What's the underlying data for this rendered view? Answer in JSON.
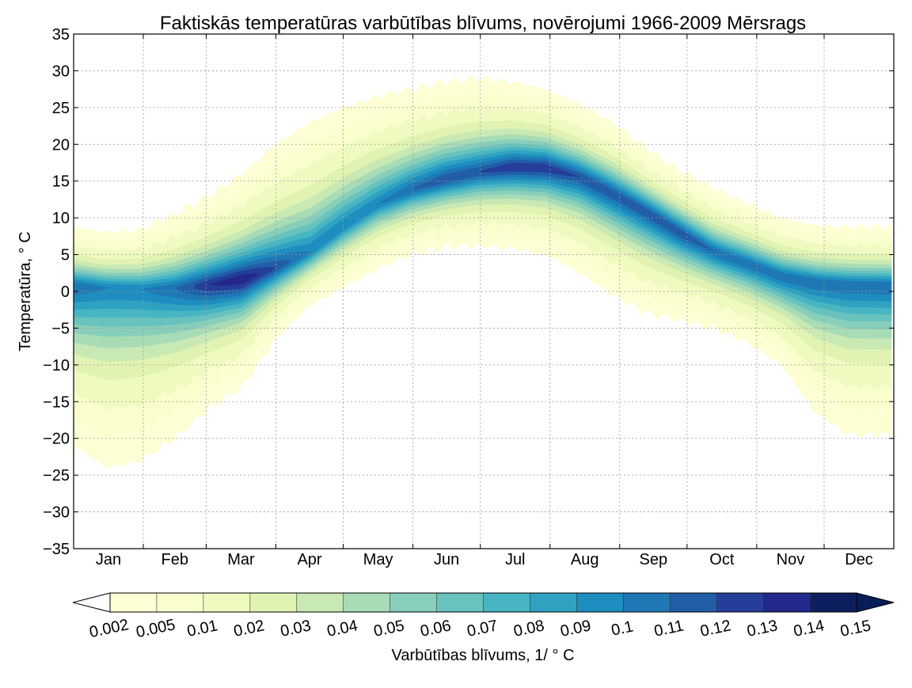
{
  "chart_data": {
    "type": "heatmap",
    "subtype": "filled-contour",
    "title": "Faktiskās temperatūras varbūtības blīvums, novērojumi 1966-2009 Mērsrags",
    "xlabel": "",
    "ylabel": "Temperatūra, ° C",
    "colorbar_label": "Varbūtības blīvums, 1/ ° C",
    "xlim": [
      0,
      365
    ],
    "ylim": [
      -35,
      35
    ],
    "yticks": [
      35,
      30,
      25,
      20,
      15,
      10,
      5,
      0,
      -5,
      -10,
      -15,
      -20,
      -25,
      -30,
      -35
    ],
    "ytick_labels": [
      "35",
      "30",
      "25",
      "20",
      "15",
      "10",
      "5",
      "0",
      "−5",
      "−10",
      "−15",
      "−20",
      "−25",
      "−30",
      "−35"
    ],
    "months": [
      "Jan",
      "Feb",
      "Mar",
      "Apr",
      "May",
      "Jun",
      "Jul",
      "Aug",
      "Sep",
      "Oct",
      "Nov",
      "Dec"
    ],
    "month_boundaries": [
      0,
      31,
      59,
      90,
      120,
      151,
      181,
      212,
      243,
      273,
      304,
      334,
      365
    ],
    "grid": true,
    "colormap": "YlGnBu",
    "levels": [
      0.002,
      0.005,
      0.01,
      0.02,
      0.03,
      0.04,
      0.05,
      0.06,
      0.07,
      0.08,
      0.09,
      0.1,
      0.11,
      0.12,
      0.13,
      0.14,
      0.15
    ],
    "level_labels": [
      "0.002",
      "0.005",
      "0.01",
      "0.02",
      "0.03",
      "0.04",
      "0.05",
      "0.06",
      "0.07",
      "0.08",
      "0.09",
      "0.1",
      "0.11",
      "0.12",
      "0.13",
      "0.14",
      "0.15"
    ],
    "level_colors": [
      "#fdfed4",
      "#fafdcc",
      "#effac0",
      "#e1f3b2",
      "#c9e9b4",
      "#a8dcb6",
      "#88cfbb",
      "#68c2be",
      "#48b5c3",
      "#2fa2c2",
      "#1d8ebf",
      "#1f78b4",
      "#225ea8",
      "#243e99",
      "#23298c",
      "#0d1f5e"
    ],
    "extend_under_color": "#ffffff",
    "extend_over_color": "#081d58",
    "density_profile": {
      "day": [
        0,
        15,
        30,
        45,
        60,
        75,
        90,
        105,
        120,
        135,
        150,
        165,
        180,
        195,
        210,
        225,
        240,
        255,
        270,
        285,
        300,
        315,
        330,
        345,
        365
      ],
      "mode_temperature": [
        0.8,
        0.5,
        0.3,
        0.4,
        0.9,
        1.6,
        3.2,
        5.3,
        8.8,
        11.8,
        13.8,
        15.2,
        16.2,
        16.9,
        16.8,
        15.6,
        13.3,
        10.8,
        8.0,
        5.4,
        3.8,
        2.1,
        1.3,
        0.9,
        0.8
      ],
      "upper_limit": [
        8.8,
        8.0,
        8.5,
        10.5,
        13.0,
        16.0,
        20.0,
        23.0,
        25.0,
        26.5,
        27.5,
        28.5,
        29.0,
        28.5,
        27.5,
        25.5,
        23.0,
        19.5,
        16.5,
        14.0,
        12.0,
        10.0,
        9.0,
        8.8,
        8.8
      ],
      "lower_limit": [
        -21.0,
        -24.0,
        -23.0,
        -20.0,
        -16.0,
        -13.0,
        -6.5,
        -2.0,
        0.5,
        3.0,
        5.0,
        6.0,
        6.2,
        5.8,
        5.0,
        2.5,
        -0.5,
        -3.0,
        -4.0,
        -5.0,
        -7.0,
        -10.0,
        -16.5,
        -19.5,
        -19.5
      ],
      "peak_density": [
        0.11,
        0.1,
        0.1,
        0.11,
        0.13,
        0.14,
        0.12,
        0.1,
        0.1,
        0.1,
        0.11,
        0.12,
        0.12,
        0.13,
        0.13,
        0.12,
        0.12,
        0.12,
        0.12,
        0.11,
        0.11,
        0.11,
        0.11,
        0.11,
        0.11
      ]
    }
  }
}
